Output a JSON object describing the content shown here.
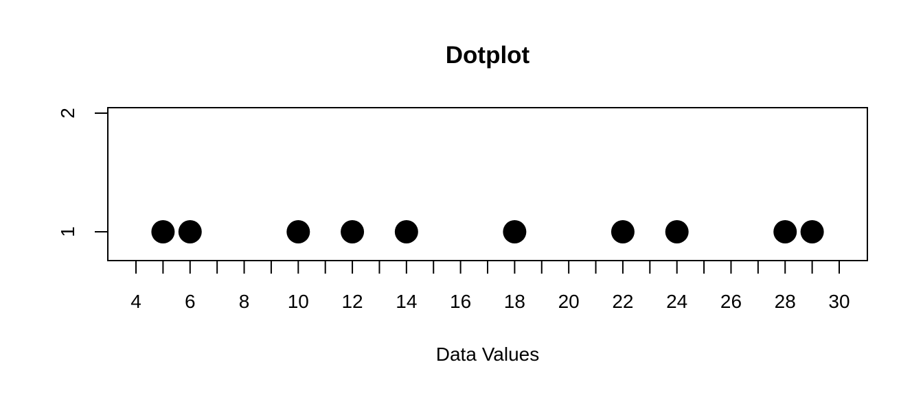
{
  "chart_data": {
    "type": "scatter",
    "title": "Dotplot",
    "xlabel": "Data Values",
    "ylabel": "",
    "x": [
      5,
      6,
      10,
      12,
      14,
      18,
      22,
      24,
      28,
      29
    ],
    "y": [
      1,
      1,
      1,
      1,
      1,
      1,
      1,
      1,
      1,
      1
    ],
    "xlim": [
      3,
      31
    ],
    "ylim": [
      0.75,
      2.05
    ],
    "x_ticks_minor": [
      4,
      5,
      6,
      7,
      8,
      9,
      10,
      11,
      12,
      13,
      14,
      15,
      16,
      17,
      18,
      19,
      20,
      21,
      22,
      23,
      24,
      25,
      26,
      27,
      28,
      29,
      30
    ],
    "x_tick_labels": [
      "4",
      "6",
      "8",
      "10",
      "12",
      "14",
      "16",
      "18",
      "20",
      "22",
      "24",
      "26",
      "28",
      "30"
    ],
    "y_tick_labels": [
      "1",
      "2"
    ],
    "grid": false,
    "legend": "none",
    "point_color": "#000000"
  }
}
